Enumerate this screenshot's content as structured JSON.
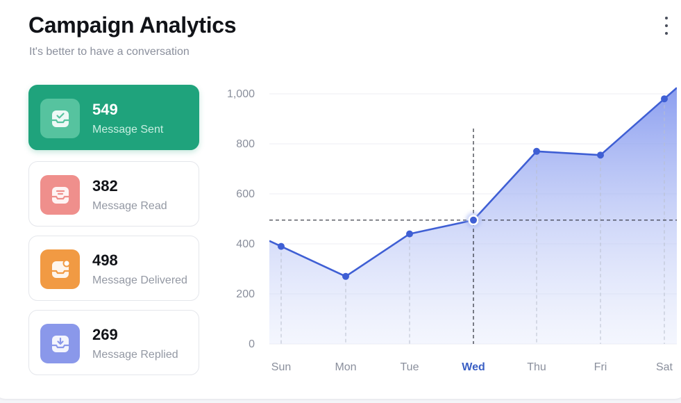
{
  "header": {
    "title": "Campaign Analytics",
    "subtitle": "It's better to have a conversation",
    "more_icon": "vertical-ellipsis-icon"
  },
  "stats": [
    {
      "value": "549",
      "label": "Message Sent",
      "icon": "inbox-check-icon",
      "color": "#1fa37c",
      "icon_bg": "#56c39f",
      "active": true
    },
    {
      "value": "382",
      "label": "Message Read",
      "icon": "inbox-read-icon",
      "color": "#ef8f8c",
      "icon_bg": "#ef8f8c",
      "active": false
    },
    {
      "value": "498",
      "label": "Message Delivered",
      "icon": "inbox-notification-icon",
      "color": "#f19a43",
      "icon_bg": "#f19a43",
      "active": false
    },
    {
      "value": "269",
      "label": "Message Replied",
      "icon": "inbox-download-icon",
      "color": "#8a98ea",
      "icon_bg": "#8a98ea",
      "active": false
    }
  ],
  "chart_data": {
    "type": "area",
    "categories": [
      "Sun",
      "Mon",
      "Tue",
      "Wed",
      "Thu",
      "Fri",
      "Sat"
    ],
    "values": [
      390,
      270,
      440,
      495,
      770,
      755,
      980
    ],
    "ylim": [
      0,
      1000
    ],
    "yticks": [
      "0",
      "200",
      "400",
      "600",
      "800",
      "1,000"
    ],
    "selected_category": "Wed",
    "selected_value": 495,
    "line_color": "#3f5fd4",
    "grid": true
  }
}
